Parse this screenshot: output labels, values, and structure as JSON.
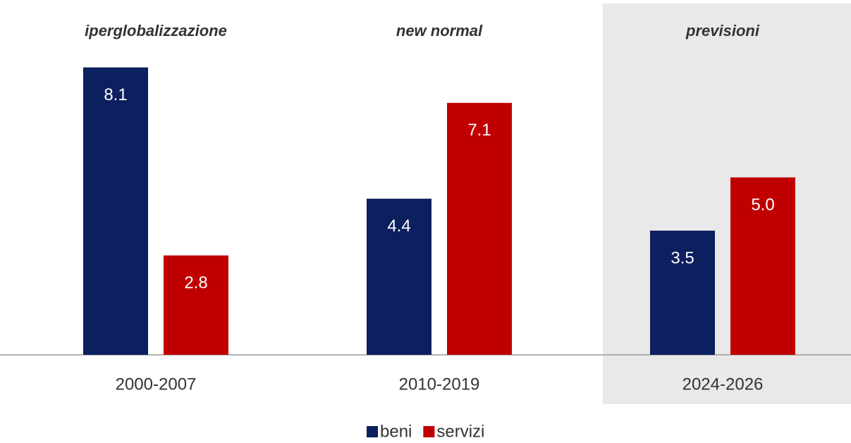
{
  "chart_data": {
    "type": "bar",
    "categories": [
      "2000-2007",
      "2010-2019",
      "2024-2026"
    ],
    "annotations": [
      "iperglobalizzazione",
      "new normal",
      "previsioni"
    ],
    "highlight": "2024-2026",
    "series": [
      {
        "name": "beni",
        "color": "#0c1f5e",
        "values": [
          8.1,
          4.4,
          3.5
        ],
        "value_labels": [
          "8.1",
          "4.4",
          "3.5"
        ]
      },
      {
        "name": "servizi",
        "color": "#c00000",
        "values": [
          2.8,
          7.1,
          5.0
        ],
        "value_labels": [
          "2.8",
          "7.1",
          "5.0"
        ]
      }
    ],
    "ylim": [
      0,
      10
    ],
    "legend": "bottom"
  }
}
